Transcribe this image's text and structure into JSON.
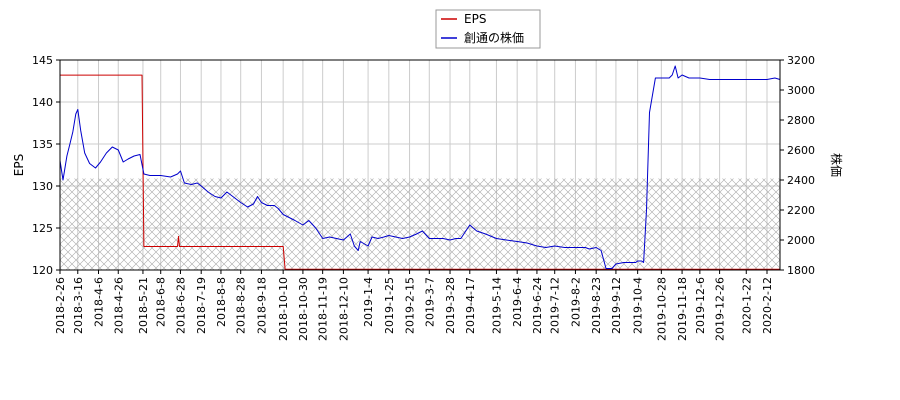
{
  "chart_data": {
    "type": "line",
    "legend": {
      "position": "top-center",
      "entries": [
        "EPS",
        "創通の株価"
      ]
    },
    "grid": true,
    "shaded_band": {
      "axis": "y_right",
      "from": 1800,
      "to": 2410,
      "pattern": "crosshatch"
    },
    "x_tick_labels": [
      "2018-2-26",
      "2018-3-16",
      "2018-4-6",
      "2018-4-26",
      "2018-5-21",
      "2018-6-8",
      "2018-6-28",
      "2018-7-19",
      "2018-8-8",
      "2018-8-28",
      "2018-9-18",
      "2018-10-10",
      "2018-10-30",
      "2018-11-19",
      "2018-12-10",
      "2019-1-4",
      "2019-1-25",
      "2019-2-15",
      "2019-3-7",
      "2019-3-28",
      "2019-4-17",
      "2019-5-14",
      "2019-6-4",
      "2019-6-24",
      "2019-7-12",
      "2019-8-2",
      "2019-8-23",
      "2019-9-12",
      "2019-10-4",
      "2019-10-28",
      "2019-11-18",
      "2019-12-6",
      "2019-12-26",
      "2020-1-22",
      "2020-2-12"
    ],
    "y_left": {
      "label": "EPS",
      "range": [
        120,
        145
      ],
      "ticks": [
        "120",
        "125",
        "130",
        "135",
        "140",
        "145"
      ]
    },
    "y_right": {
      "label": "株価",
      "range": [
        1800,
        3200
      ],
      "ticks": [
        "1800",
        "2000",
        "2200",
        "2400",
        "2600",
        "2800",
        "3000",
        "3200"
      ]
    },
    "series": [
      {
        "name": "EPS",
        "axis": "left",
        "color": "#cc0000",
        "x": [
          "2018-2-26",
          "2018-5-20",
          "2018-5-22",
          "2018-6-25",
          "2018-6-26",
          "2018-6-27",
          "2018-10-10",
          "2018-10-12",
          "2020-2-26"
        ],
        "values": [
          143.2,
          143.2,
          122.8,
          122.8,
          124.0,
          122.8,
          122.8,
          120.1,
          120.1
        ]
      },
      {
        "name": "創通の株価",
        "axis": "right",
        "color": "#0000cc",
        "x": [
          "2018-2-26",
          "2018-3-1",
          "2018-3-5",
          "2018-3-8",
          "2018-3-11",
          "2018-3-14",
          "2018-3-16",
          "2018-3-19",
          "2018-3-23",
          "2018-3-28",
          "2018-4-3",
          "2018-4-8",
          "2018-4-14",
          "2018-4-20",
          "2018-4-26",
          "2018-5-1",
          "2018-5-6",
          "2018-5-12",
          "2018-5-18",
          "2018-5-22",
          "2018-5-28",
          "2018-6-8",
          "2018-6-18",
          "2018-6-25",
          "2018-6-28",
          "2018-7-2",
          "2018-7-9",
          "2018-7-15",
          "2018-7-19",
          "2018-7-26",
          "2018-8-2",
          "2018-8-8",
          "2018-8-14",
          "2018-8-20",
          "2018-8-28",
          "2018-9-4",
          "2018-9-10",
          "2018-9-14",
          "2018-9-18",
          "2018-9-24",
          "2018-10-1",
          "2018-10-5",
          "2018-10-10",
          "2018-10-16",
          "2018-10-22",
          "2018-10-30",
          "2018-11-5",
          "2018-11-12",
          "2018-11-19",
          "2018-11-26",
          "2018-12-3",
          "2018-12-10",
          "2018-12-17",
          "2018-12-21",
          "2018-12-25",
          "2018-12-27",
          "2019-1-4",
          "2019-1-8",
          "2019-1-14",
          "2019-1-20",
          "2019-1-25",
          "2019-2-1",
          "2019-2-8",
          "2019-2-15",
          "2019-2-22",
          "2019-2-28",
          "2019-3-7",
          "2019-3-14",
          "2019-3-21",
          "2019-3-28",
          "2019-4-3",
          "2019-4-8",
          "2019-4-12",
          "2019-4-17",
          "2019-4-24",
          "2019-5-3",
          "2019-5-14",
          "2019-5-24",
          "2019-6-4",
          "2019-6-14",
          "2019-6-24",
          "2019-7-3",
          "2019-7-12",
          "2019-7-22",
          "2019-8-2",
          "2019-8-12",
          "2019-8-16",
          "2019-8-23",
          "2019-8-28",
          "2019-9-2",
          "2019-9-8",
          "2019-9-12",
          "2019-9-20",
          "2019-9-26",
          "2019-10-2",
          "2019-10-4",
          "2019-10-8",
          "2019-10-10",
          "2019-10-13",
          "2019-10-16",
          "2019-10-22",
          "2019-10-28",
          "2019-11-5",
          "2019-11-8",
          "2019-11-11",
          "2019-11-14",
          "2019-11-18",
          "2019-11-25",
          "2019-12-6",
          "2019-12-16",
          "2019-12-26",
          "2020-1-10",
          "2020-1-22",
          "2020-2-3",
          "2020-2-12",
          "2020-2-20",
          "2020-2-26"
        ],
        "values": [
          2530,
          2400,
          2560,
          2640,
          2720,
          2840,
          2870,
          2730,
          2580,
          2510,
          2480,
          2520,
          2580,
          2620,
          2600,
          2520,
          2540,
          2560,
          2570,
          2440,
          2430,
          2430,
          2420,
          2440,
          2460,
          2380,
          2370,
          2380,
          2360,
          2320,
          2290,
          2280,
          2320,
          2290,
          2250,
          2220,
          2240,
          2290,
          2250,
          2230,
          2230,
          2210,
          2170,
          2150,
          2130,
          2100,
          2130,
          2080,
          2010,
          2020,
          2010,
          2000,
          2040,
          1960,
          1930,
          1990,
          1960,
          2020,
          2010,
          2020,
          2030,
          2020,
          2010,
          2020,
          2040,
          2060,
          2010,
          2010,
          2010,
          2000,
          2010,
          2010,
          2050,
          2100,
          2060,
          2040,
          2010,
          2000,
          1990,
          1980,
          1960,
          1950,
          1960,
          1950,
          1950,
          1950,
          1940,
          1950,
          1930,
          1810,
          1810,
          1840,
          1850,
          1850,
          1850,
          1860,
          1860,
          1850,
          2200,
          2850,
          3080,
          3080,
          3080,
          3100,
          3160,
          3080,
          3100,
          3080,
          3080,
          3070,
          3070,
          3070,
          3070,
          3070,
          3070,
          3080,
          3070
        ]
      }
    ]
  }
}
